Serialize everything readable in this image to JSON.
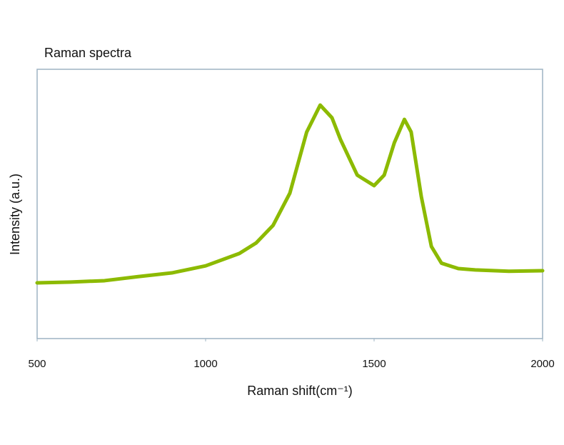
{
  "chart_data": {
    "type": "line",
    "title": "Raman spectra",
    "x_label": "Raman shift(cm⁻¹)",
    "y_label": "Intensity (a.u.)",
    "x": [
      500,
      600,
      700,
      800,
      900,
      1000,
      1100,
      1150,
      1200,
      1250,
      1300,
      1340,
      1375,
      1400,
      1450,
      1500,
      1530,
      1560,
      1590,
      1610,
      1640,
      1670,
      1700,
      1750,
      1800,
      1900,
      2000
    ],
    "series": [
      {
        "name": "Raman spectra",
        "color": "#8cba00",
        "values": [
          20.7,
          21,
          21.5,
          23,
          24.4,
          27,
          31.6,
          35.5,
          42,
          54,
          76.7,
          86.7,
          82,
          74,
          60.7,
          56.8,
          60.7,
          72.7,
          81.4,
          76.7,
          52.8,
          34.2,
          28,
          26,
          25.5,
          25,
          25.2
        ]
      }
    ],
    "xlim": [
      500,
      2000
    ],
    "xticks": [
      500,
      1000,
      1500,
      2000
    ],
    "ylim": [
      0,
      100
    ],
    "grid": false
  }
}
